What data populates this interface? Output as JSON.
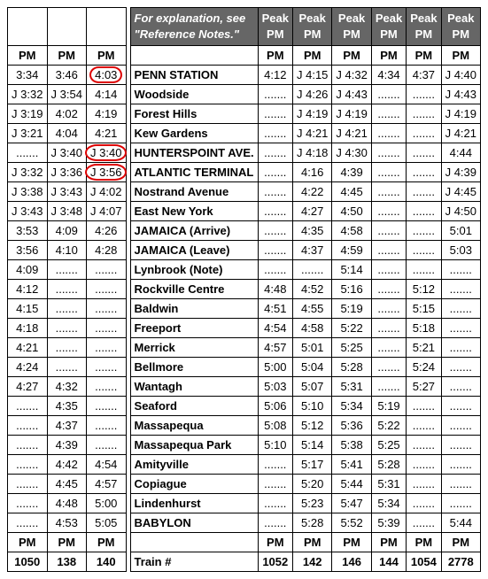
{
  "dots": ".......",
  "header_note": "For explanation, see \"Reference Notes.\"",
  "left_headers": [
    "PM",
    "PM",
    "PM"
  ],
  "left_rows": [
    [
      "3:34",
      "3:46",
      "4:03"
    ],
    [
      "J 3:32",
      "J 3:54",
      "4:14"
    ],
    [
      "J 3:19",
      "4:02",
      "4:19"
    ],
    [
      "J 3:21",
      "4:04",
      "4:21"
    ],
    [
      ".......",
      "J 3:40",
      "J 3:40"
    ],
    [
      "J 3:32",
      "J 3:36",
      "J 3:56"
    ],
    [
      "J 3:38",
      "J 3:43",
      "J 4:02"
    ],
    [
      "J 3:43",
      "J 3:48",
      "J 4:07"
    ],
    [
      "3:53",
      "4:09",
      "4:26"
    ],
    [
      "3:56",
      "4:10",
      "4:28"
    ],
    [
      "4:09",
      ".......",
      "......."
    ],
    [
      "4:12",
      ".......",
      "......."
    ],
    [
      "4:15",
      ".......",
      "......."
    ],
    [
      "4:18",
      ".......",
      "......."
    ],
    [
      "4:21",
      ".......",
      "......."
    ],
    [
      "4:24",
      ".......",
      "......."
    ],
    [
      "4:27",
      "4:32",
      "......."
    ],
    [
      ".......",
      "4:35",
      "......."
    ],
    [
      ".......",
      "4:37",
      "......."
    ],
    [
      ".......",
      "4:39",
      "......."
    ],
    [
      ".......",
      "4:42",
      "4:54"
    ],
    [
      ".......",
      "4:45",
      "4:57"
    ],
    [
      ".......",
      "4:48",
      "5:00"
    ],
    [
      ".......",
      "4:53",
      "5:05"
    ],
    [
      "PM",
      "PM",
      "PM"
    ],
    [
      "1050",
      "138",
      "140"
    ]
  ],
  "circled": [
    [
      0,
      2
    ],
    [
      4,
      2
    ],
    [
      5,
      2
    ]
  ],
  "right_headers": [
    "Peak PM",
    "Peak PM",
    "Peak PM",
    "Peak PM",
    "Peak PM",
    "Peak PM"
  ],
  "stations": [
    "PENN STATION",
    "Woodside",
    "Forest Hills",
    "Kew Gardens",
    "HUNTERSPOINT AVE.",
    "ATLANTIC TERMINAL",
    "Nostrand Avenue",
    "East New York",
    "JAMAICA (Arrive)",
    "JAMAICA (Leave)",
    "Lynbrook (Note)",
    "Rockville Centre",
    "Baldwin",
    "Freeport",
    "Merrick",
    "Bellmore",
    "Wantagh",
    "Seaford",
    "Massapequa",
    "Massapequa Park",
    "Amityville",
    "Copiague",
    "Lindenhurst",
    "BABYLON",
    "",
    "Train #"
  ],
  "right_rows": [
    [
      "4:12",
      "J 4:15",
      "J 4:32",
      "4:34",
      "4:37",
      "J 4:40"
    ],
    [
      ".......",
      "J 4:26",
      "J 4:43",
      ".......",
      ".......",
      "J 4:43"
    ],
    [
      ".......",
      "J 4:19",
      "J 4:19",
      ".......",
      ".......",
      "J 4:19"
    ],
    [
      ".......",
      "J 4:21",
      "J 4:21",
      ".......",
      ".......",
      "J 4:21"
    ],
    [
      ".......",
      "J 4:18",
      "J 4:30",
      ".......",
      ".......",
      "4:44"
    ],
    [
      ".......",
      "4:16",
      "4:39",
      ".......",
      ".......",
      "J 4:39"
    ],
    [
      ".......",
      "4:22",
      "4:45",
      ".......",
      ".......",
      "J 4:45"
    ],
    [
      ".......",
      "4:27",
      "4:50",
      ".......",
      ".......",
      "J 4:50"
    ],
    [
      ".......",
      "4:35",
      "4:58",
      ".......",
      ".......",
      "5:01"
    ],
    [
      ".......",
      "4:37",
      "4:59",
      ".......",
      ".......",
      "5:03"
    ],
    [
      ".......",
      ".......",
      "5:14",
      ".......",
      ".......",
      "......."
    ],
    [
      "4:48",
      "4:52",
      "5:16",
      ".......",
      "5:12",
      "......."
    ],
    [
      "4:51",
      "4:55",
      "5:19",
      ".......",
      "5:15",
      "......."
    ],
    [
      "4:54",
      "4:58",
      "5:22",
      ".......",
      "5:18",
      "......."
    ],
    [
      "4:57",
      "5:01",
      "5:25",
      ".......",
      "5:21",
      "......."
    ],
    [
      "5:00",
      "5:04",
      "5:28",
      ".......",
      "5:24",
      "......."
    ],
    [
      "5:03",
      "5:07",
      "5:31",
      ".......",
      "5:27",
      "......."
    ],
    [
      "5:06",
      "5:10",
      "5:34",
      "5:19",
      ".......",
      "......."
    ],
    [
      "5:08",
      "5:12",
      "5:36",
      "5:22",
      ".......",
      "......."
    ],
    [
      "5:10",
      "5:14",
      "5:38",
      "5:25",
      ".......",
      "......."
    ],
    [
      ".......",
      "5:17",
      "5:41",
      "5:28",
      ".......",
      "......."
    ],
    [
      ".......",
      "5:20",
      "5:44",
      "5:31",
      ".......",
      "......."
    ],
    [
      ".......",
      "5:23",
      "5:47",
      "5:34",
      ".......",
      "......."
    ],
    [
      ".......",
      "5:28",
      "5:52",
      "5:39",
      ".......",
      "5:44"
    ],
    [
      "PM",
      "PM",
      "PM",
      "PM",
      "PM",
      "PM"
    ],
    [
      "1052",
      "142",
      "146",
      "144",
      "1054",
      "2778"
    ]
  ]
}
